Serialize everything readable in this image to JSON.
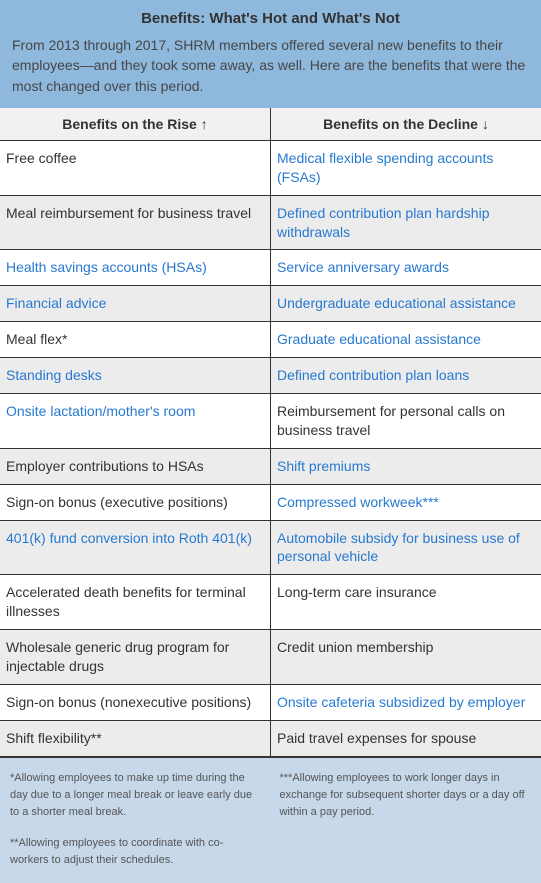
{
  "title": "Benefits: What's Hot and What's Not",
  "intro": "From 2013 through 2017, SHRM members offered several new benefits to their employees—and they took some away, as well. Here are the benefits that were the most changed over this period.",
  "columns": {
    "rise": "Benefits on the Rise ↑",
    "decline": "Benefits on the Decline ↓"
  },
  "rows": [
    {
      "rise": {
        "text": "Free coffee",
        "link": false
      },
      "decline": {
        "text": "Medical flexible spending accounts (FSAs)",
        "link": true
      }
    },
    {
      "rise": {
        "text": "Meal reimbursement for business travel",
        "link": false
      },
      "decline": {
        "text": "Defined contribution plan hardship withdrawals",
        "link": true
      }
    },
    {
      "rise": {
        "text": "Health savings accounts (HSAs)",
        "link": true
      },
      "decline": {
        "text": "Service anniversary awards",
        "link": true
      }
    },
    {
      "rise": {
        "text": "Financial advice",
        "link": true
      },
      "decline": {
        "text": "Undergraduate educational assistance",
        "link": true
      }
    },
    {
      "rise": {
        "text": "Meal flex*",
        "link": false
      },
      "decline": {
        "text": "Graduate educational assistance",
        "link": true
      }
    },
    {
      "rise": {
        "text": "Standing desks",
        "link": true
      },
      "decline": {
        "text": "Defined contribution plan loans",
        "link": true
      }
    },
    {
      "rise": {
        "text": "Onsite lactation/mother's room",
        "link": true
      },
      "decline": {
        "text": "Reimbursement for personal calls on business travel",
        "link": false
      }
    },
    {
      "rise": {
        "text": "Employer contributions to HSAs",
        "link": false
      },
      "decline": {
        "text": "Shift premiums",
        "link": true
      }
    },
    {
      "rise": {
        "text": "Sign-on bonus (executive positions)",
        "link": false
      },
      "decline": {
        "text": "Compressed workweek***",
        "link": true
      }
    },
    {
      "rise": {
        "text": "401(k) fund conversion into Roth 401(k)",
        "link": true
      },
      "decline": {
        "text": "Automobile subsidy for business use of personal vehicle",
        "link": true
      }
    },
    {
      "rise": {
        "text": "Accelerated death benefits for terminal illnesses",
        "link": false
      },
      "decline": {
        "text": "Long-term care insurance",
        "link": false
      }
    },
    {
      "rise": {
        "text": "Wholesale generic drug program for injectable drugs",
        "link": false
      },
      "decline": {
        "text": "Credit union membership",
        "link": false
      }
    },
    {
      "rise": {
        "text": "Sign-on bonus (nonexecutive positions)",
        "link": false
      },
      "decline": {
        "text": "Onsite cafeteria subsidized by employer",
        "link": true
      }
    },
    {
      "rise": {
        "text": "Shift flexibility**",
        "link": false
      },
      "decline": {
        "text": "Paid travel expenses for spouse",
        "link": false
      }
    }
  ],
  "footnotes": {
    "left": [
      "*Allowing employees to make up time during the day due to a longer meal break or leave early due to a shorter meal break.",
      "**Allowing employees to coordinate with co-workers to adjust their schedules."
    ],
    "right": [
      "***Allowing employees to work longer days in exchange for subsequent shorter days or a day off within a pay period."
    ]
  },
  "colors": {
    "header_band": "#8fb8dd",
    "link": "#2779cf",
    "row_alt": "#ececec",
    "footnote_bg": "#c6d8ea",
    "border": "#333333"
  }
}
